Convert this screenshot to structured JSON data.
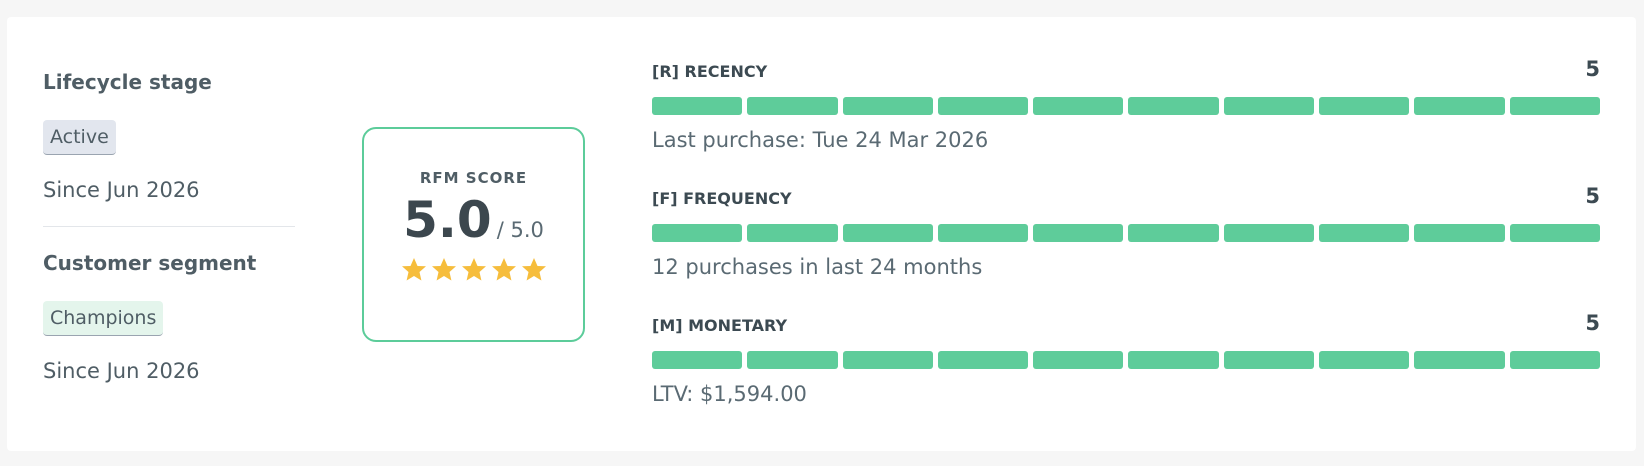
{
  "lifecycle": {
    "title": "Lifecycle stage",
    "badge": "Active",
    "since": "Since Jun 2026"
  },
  "segment": {
    "title": "Customer segment",
    "badge": "Champions",
    "since": "Since Jun 2026"
  },
  "rfm": {
    "label": "RFM SCORE",
    "score": "5.0",
    "max": "/ 5.0"
  },
  "metrics": [
    {
      "name": "[R] RECENCY",
      "score": 5,
      "detail": "Last purchase: Tue 24 Mar 2026"
    },
    {
      "name": "[F] FREQUENCY",
      "score": 5,
      "detail": "12 purchases in last 24 months"
    },
    {
      "name": "[M] MONETARY",
      "score": 5,
      "detail": "LTV: $1,594.00"
    }
  ]
}
